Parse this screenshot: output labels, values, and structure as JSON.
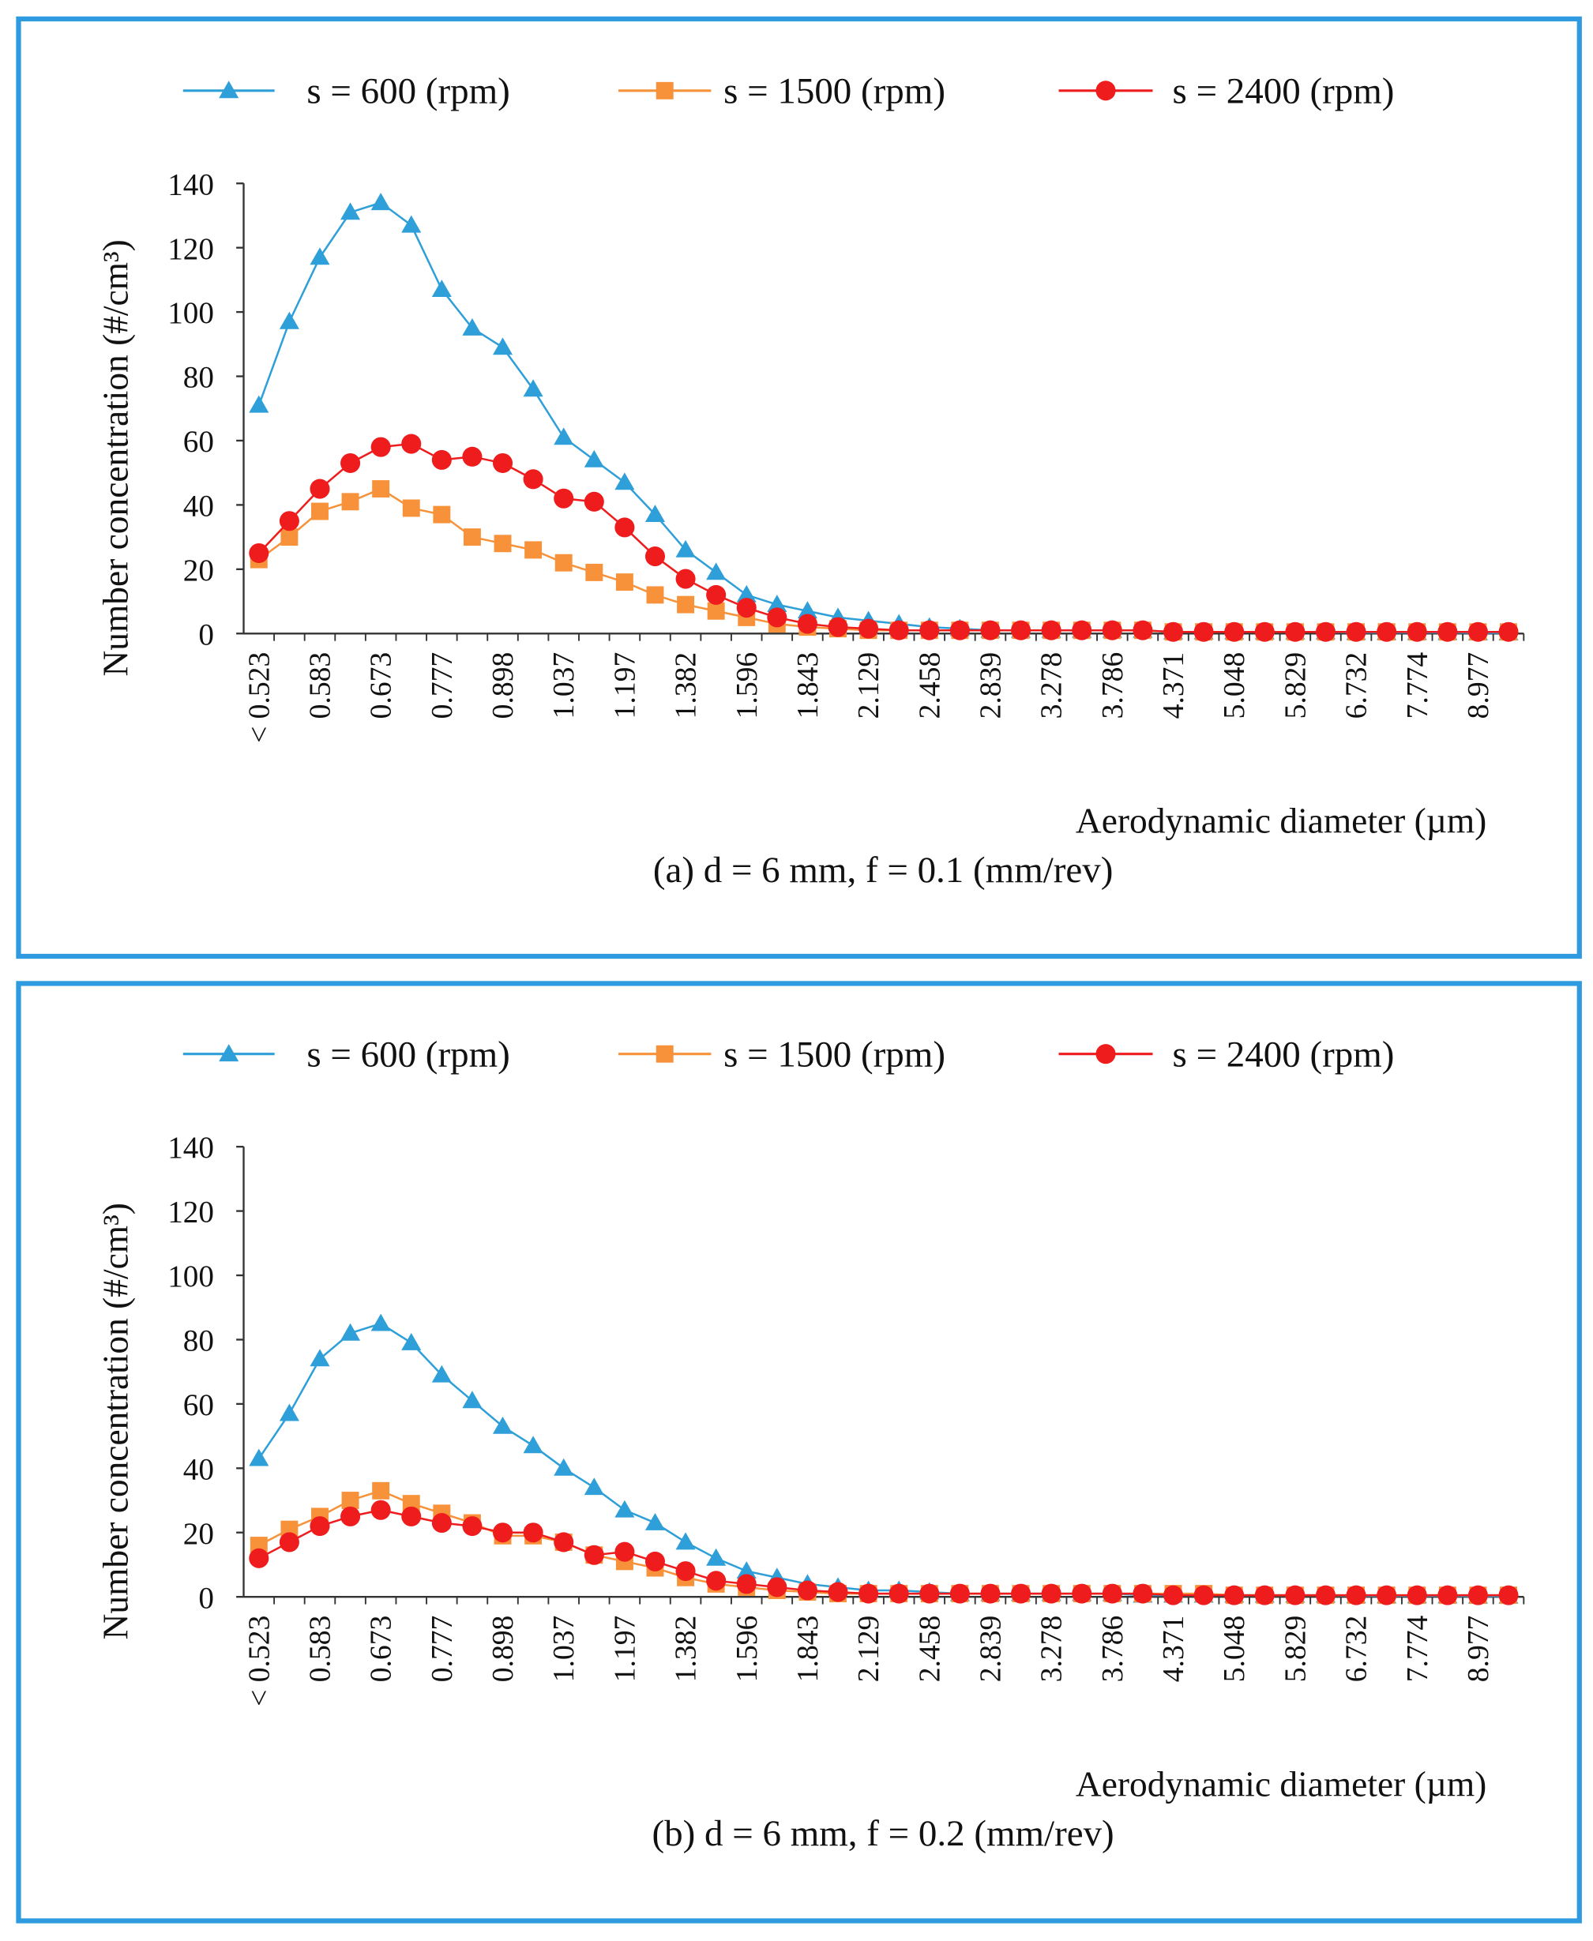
{
  "chart_data": [
    {
      "type": "line",
      "title": "(a) d = 6 mm, f = 0.1 (mm/rev)",
      "x_label": "Aerodynamic diameter (µm)",
      "y_label": "Number concentration (#/cm³)",
      "categories": [
        "< 0.523",
        null,
        "0.583",
        null,
        "0.673",
        null,
        "0.777",
        null,
        "0.898",
        null,
        "1.037",
        null,
        "1.197",
        null,
        "1.382",
        null,
        "1.596",
        null,
        "1.843",
        null,
        "2.129",
        null,
        "2.458",
        null,
        "2.839",
        null,
        "3.278",
        null,
        "3.786",
        null,
        "4.371",
        null,
        "5.048",
        null,
        "5.829",
        null,
        "6.732",
        null,
        "7.774",
        null,
        "8.977",
        null
      ],
      "ylim": [
        0,
        140
      ],
      "yticks": [
        0,
        20,
        40,
        60,
        80,
        100,
        120,
        140
      ],
      "series": [
        {
          "name": "s = 600 (rpm)",
          "color": "#2e9fd8",
          "marker": "triangle",
          "values": [
            71,
            97,
            117,
            131,
            134,
            127,
            107,
            95,
            89,
            76,
            61,
            54,
            47,
            37,
            26,
            19,
            12,
            9,
            7,
            5,
            4,
            3,
            2,
            1.5,
            1,
            1,
            1,
            1,
            1,
            1,
            0.5,
            0.5,
            0.5,
            0.5,
            0.5,
            0.5,
            0.3,
            0.3,
            0.3,
            0.3,
            0.2,
            0.2
          ]
        },
        {
          "name": "s = 1500 (rpm)",
          "color": "#f7923a",
          "marker": "square",
          "values": [
            23,
            30,
            38,
            41,
            45,
            39,
            37,
            30,
            28,
            26,
            22,
            19,
            16,
            12,
            9,
            7,
            5,
            3,
            2,
            1.5,
            1,
            1,
            1,
            1,
            1,
            1,
            1,
            1,
            1,
            1,
            0.5,
            0.5,
            0.5,
            0.5,
            0.5,
            0.5,
            0.5,
            0.5,
            0.5,
            0.5,
            0.5,
            0.5
          ]
        },
        {
          "name": "s = 2400 (rpm)",
          "color": "#ee1c1c",
          "marker": "circle",
          "values": [
            25,
            35,
            45,
            53,
            58,
            59,
            54,
            55,
            53,
            48,
            42,
            41,
            33,
            24,
            17,
            12,
            8,
            5,
            3,
            2,
            1.5,
            1,
            1,
            1,
            1,
            1,
            1,
            1,
            1,
            1,
            0.5,
            0.5,
            0.5,
            0.5,
            0.5,
            0.5,
            0.5,
            0.5,
            0.5,
            0.5,
            0.5,
            0.5
          ]
        }
      ]
    },
    {
      "type": "line",
      "title": "(b) d = 6 mm, f = 0.2 (mm/rev)",
      "x_label": "Aerodynamic diameter (µm)",
      "y_label": "Number concentration (#/cm³)",
      "categories": [
        "< 0.523",
        null,
        "0.583",
        null,
        "0.673",
        null,
        "0.777",
        null,
        "0.898",
        null,
        "1.037",
        null,
        "1.197",
        null,
        "1.382",
        null,
        "1.596",
        null,
        "1.843",
        null,
        "2.129",
        null,
        "2.458",
        null,
        "2.839",
        null,
        "3.278",
        null,
        "3.786",
        null,
        "4.371",
        null,
        "5.048",
        null,
        "5.829",
        null,
        "6.732",
        null,
        "7.774",
        null,
        "8.977",
        null
      ],
      "ylim": [
        0,
        140
      ],
      "yticks": [
        0,
        20,
        40,
        60,
        80,
        100,
        120,
        140
      ],
      "series": [
        {
          "name": "s = 600 (rpm)",
          "color": "#2e9fd8",
          "marker": "triangle",
          "values": [
            43,
            57,
            74,
            82,
            85,
            79,
            69,
            61,
            53,
            47,
            40,
            34,
            27,
            23,
            17,
            12,
            8,
            6,
            4,
            3,
            2,
            2,
            1.5,
            1,
            1,
            1,
            1,
            1,
            1,
            0.5,
            0.5,
            0.5,
            0.5,
            0.5,
            0.5,
            0.5,
            0.3,
            0.3,
            0.3,
            0.3,
            0.2,
            0.2
          ]
        },
        {
          "name": "s = 1500 (rpm)",
          "color": "#f7923a",
          "marker": "square",
          "values": [
            16,
            21,
            25,
            30,
            33,
            29,
            26,
            23,
            19,
            19,
            17,
            13,
            11,
            9,
            6,
            4,
            3,
            2,
            1.5,
            1,
            1,
            1,
            1,
            1,
            1,
            1,
            1,
            1,
            1,
            1,
            1,
            1,
            0.5,
            0.5,
            0.5,
            0.5,
            0.5,
            0.5,
            0.5,
            0.5,
            0.5,
            0.5
          ]
        },
        {
          "name": "s = 2400 (rpm)",
          "color": "#ee1c1c",
          "marker": "circle",
          "values": [
            12,
            17,
            22,
            25,
            27,
            25,
            23,
            22,
            20,
            20,
            17,
            13,
            14,
            11,
            8,
            5,
            4,
            3,
            2,
            1.5,
            1,
            1,
            1,
            1,
            1,
            1,
            1,
            1,
            1,
            1,
            0.5,
            0.5,
            0.5,
            0.5,
            0.5,
            0.5,
            0.5,
            0.5,
            0.5,
            0.5,
            0.5,
            0.5
          ]
        }
      ]
    }
  ]
}
